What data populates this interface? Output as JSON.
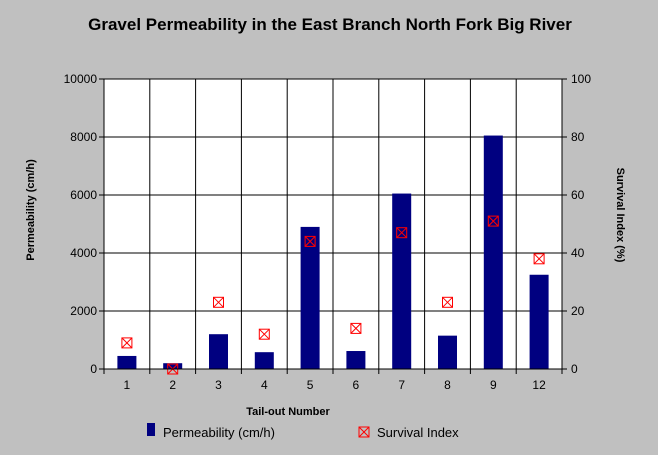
{
  "chart_data": {
    "type": "bar",
    "title": "Gravel Permeability in the East Branch North Fork Big River",
    "xlabel": "Tail-out Number",
    "ylabel": "Permeability (cm/h)",
    "y2label": "Survival Index (%)",
    "categories": [
      "1",
      "2",
      "3",
      "4",
      "5",
      "6",
      "7",
      "8",
      "9",
      "12"
    ],
    "ylim": [
      0,
      10000
    ],
    "y2lim": [
      0,
      100
    ],
    "yticks": [
      "0",
      "2000",
      "4000",
      "6000",
      "8000",
      "10000"
    ],
    "y2ticks": [
      "0",
      "20",
      "40",
      "60",
      "80",
      "100"
    ],
    "grid": true,
    "legend_position": "bottom",
    "series": [
      {
        "name": "Permeability (cm/h)",
        "kind": "bar",
        "axis": "left",
        "color": "#000080",
        "values": [
          450,
          200,
          1200,
          580,
          4900,
          620,
          6050,
          1150,
          8050,
          3250
        ]
      },
      {
        "name": "Survival Index",
        "kind": "marker",
        "marker": "x-square",
        "axis": "right",
        "color": "#ff0000",
        "values": [
          9,
          0,
          23,
          12,
          44,
          14,
          47,
          23,
          51,
          38
        ]
      }
    ]
  },
  "colors": {
    "background": "#c0c0c0",
    "plot_area": "#ffffff",
    "bar": "#000080",
    "marker": "#ff0000",
    "grid": "#000000"
  }
}
